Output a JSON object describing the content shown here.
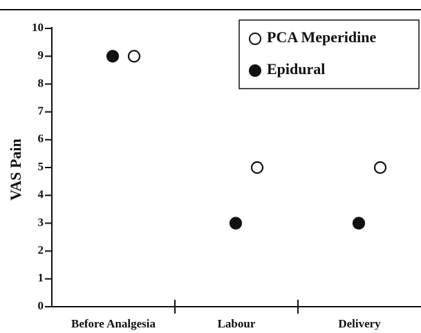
{
  "chart_data": {
    "type": "dot",
    "ylabel": "VAS Pain",
    "categories": [
      "Before Analgesia",
      "Labour",
      "Delivery"
    ],
    "series": [
      {
        "name": "PCA Meperidine",
        "color": "#ffffff",
        "values": [
          9,
          5,
          5
        ]
      },
      {
        "name": "Epidural",
        "color": "#111111",
        "values": [
          9,
          3,
          3
        ]
      }
    ],
    "ylim": [
      0,
      10
    ],
    "yticks": [
      0,
      1,
      2,
      3,
      4,
      5,
      6,
      7,
      8,
      9,
      10
    ],
    "legend": "upper right"
  }
}
